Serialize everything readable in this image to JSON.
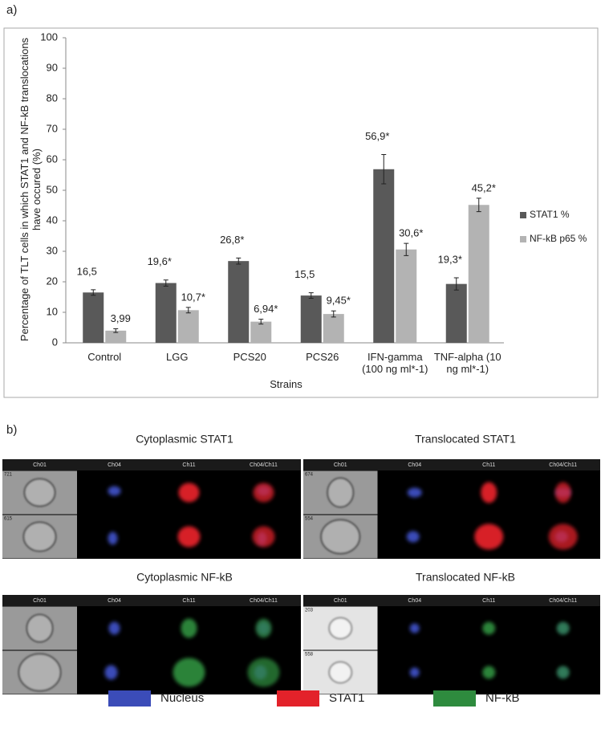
{
  "panel_a_label": "a)",
  "chart_data": {
    "type": "bar",
    "ylabel": "Percentage of TLT cells in which STAT1 and NF-kB translocations have occured (%)",
    "xlabel": "Strains",
    "categories": [
      "Control",
      "LGG",
      "PCS20",
      "PCS26",
      "IFN-gamma (100 ng ml*-1)",
      "TNF-alpha (10 ng ml*-1)"
    ],
    "series": [
      {
        "name": "STAT1 %",
        "color": "#595959",
        "values": [
          16.5,
          19.6,
          26.8,
          15.5,
          56.9,
          19.3
        ],
        "errors": [
          0.9,
          1.0,
          1.0,
          0.9,
          4.8,
          2.0
        ],
        "value_labels": [
          "16,5",
          "19,6*",
          "26,8*",
          "15,5",
          "56,9*",
          "19,3*"
        ]
      },
      {
        "name": "NF-kB p65 %",
        "color": "#b3b3b3",
        "values": [
          3.99,
          10.7,
          6.94,
          9.45,
          30.6,
          45.2
        ],
        "errors": [
          0.6,
          0.9,
          0.8,
          1.0,
          2.0,
          2.2
        ],
        "value_labels": [
          "3,99",
          "10,7*",
          "6,94*",
          "9,45*",
          "30,6*",
          "45,2*"
        ]
      }
    ],
    "ylim": [
      0,
      100
    ],
    "yticks": [
      0,
      10,
      20,
      30,
      40,
      50,
      60,
      70,
      80,
      90,
      100
    ],
    "grid": false,
    "legend": "right"
  },
  "panel_b": {
    "label": "b)",
    "rows": [
      {
        "titles": [
          "Cytoplasmic STAT1",
          "Translocated STAT1"
        ],
        "strips": [
          {
            "channels": [
              "Ch01",
              "Ch04",
              "Ch11",
              "Ch04/Ch11"
            ],
            "cells": [
              "721",
              "615"
            ]
          },
          {
            "channels": [
              "Ch01",
              "Ch04",
              "Ch11",
              "Ch04/Ch11"
            ],
            "cells": [
              "674",
              "554"
            ]
          }
        ]
      },
      {
        "titles": [
          "Cytoplasmic NF-kB",
          "Translocated NF-kB"
        ],
        "strips": [
          {
            "channels": [
              "Ch01",
              "Ch04",
              "Ch11",
              "Ch04/Ch11"
            ],
            "cells": []
          },
          {
            "channels": [
              "Ch01",
              "Ch04",
              "Ch11",
              "Ch04/Ch11"
            ],
            "cells": [
              "203",
              "558"
            ]
          }
        ]
      }
    ],
    "legend": [
      {
        "name": "Nucleus",
        "color": "#3b4cb8"
      },
      {
        "name": "STAT1",
        "color": "#e3222a"
      },
      {
        "name": "NF-kB",
        "color": "#2e8b3e"
      }
    ]
  }
}
